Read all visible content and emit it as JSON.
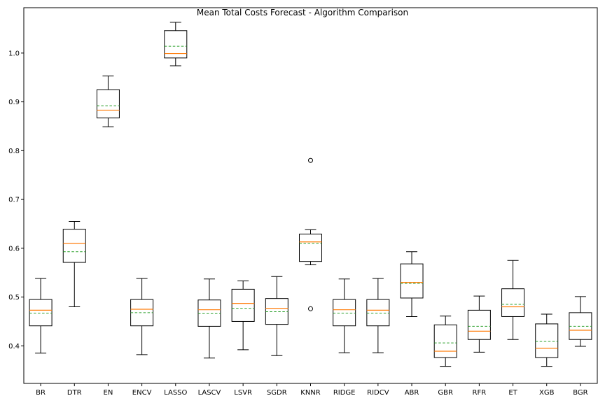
{
  "chart_data": {
    "type": "box",
    "title": "Mean Total Costs Forecast - Algorithm Comparison",
    "xlabel": "",
    "ylabel": "",
    "ylim": [
      0.323,
      1.093
    ],
    "yticks": [
      "0.4",
      "0.5",
      "0.6",
      "0.7",
      "0.8",
      "0.9",
      "1.0"
    ],
    "grid": false,
    "legend": "none",
    "colors": {
      "box": "#000000",
      "median": "#ff7f0e",
      "mean": "#2ca02c",
      "axes": "#000000"
    },
    "categories": [
      "BR",
      "DTR",
      "EN",
      "ENCV",
      "LASSO",
      "LASCV",
      "LSVR",
      "SGDR",
      "KNNR",
      "RIDGE",
      "RIDCV",
      "ABR",
      "GBR",
      "RFR",
      "ET",
      "XGB",
      "BGR"
    ],
    "boxes": [
      {
        "whislo": 0.385,
        "q1": 0.441,
        "median": 0.473,
        "mean": 0.467,
        "q3": 0.495,
        "whishi": 0.538,
        "fliers": []
      },
      {
        "whislo": 0.48,
        "q1": 0.571,
        "median": 0.61,
        "mean": 0.593,
        "q3": 0.639,
        "whishi": 0.655,
        "fliers": []
      },
      {
        "whislo": 0.849,
        "q1": 0.867,
        "median": 0.883,
        "mean": 0.892,
        "q3": 0.925,
        "whishi": 0.953,
        "fliers": []
      },
      {
        "whislo": 0.382,
        "q1": 0.441,
        "median": 0.475,
        "mean": 0.468,
        "q3": 0.495,
        "whishi": 0.538,
        "fliers": []
      },
      {
        "whislo": 0.974,
        "q1": 0.99,
        "median": 0.999,
        "mean": 1.014,
        "q3": 1.046,
        "whishi": 1.063,
        "fliers": []
      },
      {
        "whislo": 0.375,
        "q1": 0.44,
        "median": 0.474,
        "mean": 0.466,
        "q3": 0.494,
        "whishi": 0.537,
        "fliers": []
      },
      {
        "whislo": 0.392,
        "q1": 0.45,
        "median": 0.487,
        "mean": 0.477,
        "q3": 0.516,
        "whishi": 0.533,
        "fliers": []
      },
      {
        "whislo": 0.38,
        "q1": 0.444,
        "median": 0.477,
        "mean": 0.47,
        "q3": 0.497,
        "whishi": 0.542,
        "fliers": []
      },
      {
        "whislo": 0.566,
        "q1": 0.573,
        "median": 0.613,
        "mean": 0.61,
        "q3": 0.629,
        "whishi": 0.638,
        "fliers": [
          0.476,
          0.78
        ]
      },
      {
        "whislo": 0.386,
        "q1": 0.441,
        "median": 0.474,
        "mean": 0.467,
        "q3": 0.495,
        "whishi": 0.537,
        "fliers": []
      },
      {
        "whislo": 0.386,
        "q1": 0.441,
        "median": 0.473,
        "mean": 0.467,
        "q3": 0.495,
        "whishi": 0.538,
        "fliers": []
      },
      {
        "whislo": 0.46,
        "q1": 0.498,
        "median": 0.53,
        "mean": 0.528,
        "q3": 0.568,
        "whishi": 0.593,
        "fliers": []
      },
      {
        "whislo": 0.358,
        "q1": 0.376,
        "median": 0.389,
        "mean": 0.406,
        "q3": 0.443,
        "whishi": 0.461,
        "fliers": []
      },
      {
        "whislo": 0.387,
        "q1": 0.413,
        "median": 0.43,
        "mean": 0.44,
        "q3": 0.473,
        "whishi": 0.502,
        "fliers": []
      },
      {
        "whislo": 0.413,
        "q1": 0.46,
        "median": 0.48,
        "mean": 0.485,
        "q3": 0.517,
        "whishi": 0.575,
        "fliers": []
      },
      {
        "whislo": 0.358,
        "q1": 0.376,
        "median": 0.395,
        "mean": 0.409,
        "q3": 0.445,
        "whishi": 0.465,
        "fliers": []
      },
      {
        "whislo": 0.399,
        "q1": 0.413,
        "median": 0.432,
        "mean": 0.44,
        "q3": 0.468,
        "whishi": 0.501,
        "fliers": []
      }
    ]
  }
}
